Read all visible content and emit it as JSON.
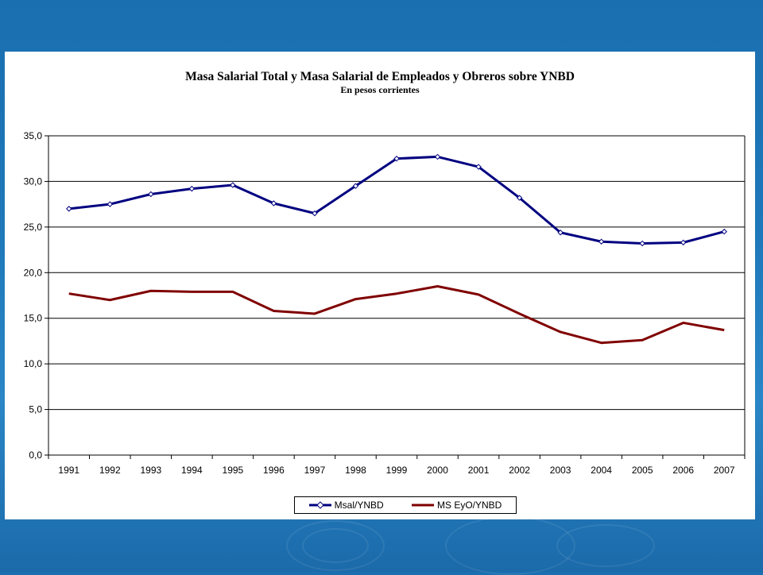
{
  "chart_data": {
    "type": "line",
    "title": "Masa Salarial Total y Masa Salarial de Empleados y Obreros sobre YNBD",
    "subtitle": "En pesos corrientes",
    "categories": [
      "1991",
      "1992",
      "1993",
      "1994",
      "1995",
      "1996",
      "1997",
      "1998",
      "1999",
      "2000",
      "2001",
      "2002",
      "2003",
      "2004",
      "2005",
      "2006",
      "2007"
    ],
    "series": [
      {
        "name": "Msal/YNBD",
        "color": "#000080",
        "marker": "diamond",
        "values": [
          27.0,
          27.5,
          28.6,
          29.2,
          29.6,
          27.6,
          26.5,
          29.5,
          32.5,
          32.7,
          31.6,
          28.2,
          24.4,
          23.4,
          23.2,
          23.3,
          24.5
        ]
      },
      {
        "name": "MS EyO/YNBD",
        "color": "#800000",
        "marker": "none",
        "values": [
          17.7,
          17.0,
          18.0,
          17.9,
          17.9,
          15.8,
          15.5,
          17.1,
          17.7,
          18.5,
          17.6,
          15.5,
          13.5,
          12.3,
          12.6,
          14.5,
          13.7
        ]
      }
    ],
    "ylim": [
      0,
      35
    ],
    "yticks": [
      "0,0",
      "5,0",
      "10,0",
      "15,0",
      "20,0",
      "25,0",
      "30,0",
      "35,0"
    ],
    "grid": true,
    "legend_position": "bottom"
  }
}
